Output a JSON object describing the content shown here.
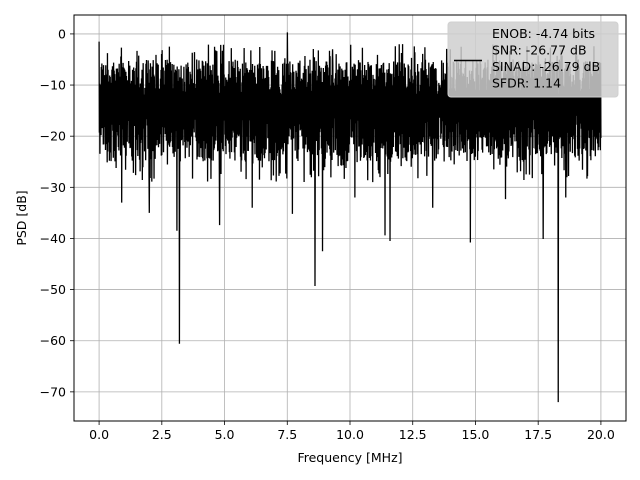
{
  "chart_data": {
    "type": "line",
    "title": "",
    "xlabel": "Frequency [MHz]",
    "ylabel": "PSD [dB]",
    "xlim": [
      -1.0,
      21.0
    ],
    "ylim": [
      -75.7,
      3.7
    ],
    "grid": true,
    "x_ticks": [
      0.0,
      2.5,
      5.0,
      7.5,
      10.0,
      12.5,
      15.0,
      17.5,
      20.0
    ],
    "x_tick_labels": [
      "0.0",
      "2.5",
      "5.0",
      "7.5",
      "10.0",
      "12.5",
      "15.0",
      "17.5",
      "20.0"
    ],
    "y_ticks": [
      0,
      -10,
      -20,
      -30,
      -40,
      -50,
      -60,
      -70
    ],
    "y_tick_labels": [
      "0",
      "−10",
      "−20",
      "−30",
      "−40",
      "−50",
      "−60",
      "−70"
    ],
    "legend_position": "top-right",
    "legend_lines": [
      "ENOB: -4.74 bits",
      "SNR: -26.77 dB",
      "SINAD: -26.79 dB",
      "SFDR: 1.14"
    ],
    "series": [
      {
        "color": "#000000",
        "x_range": [
          0.0,
          20.0
        ],
        "band_top": -5,
        "band_bottom": -25,
        "peaks": [
          [
            0.0,
            -1.5
          ],
          [
            2.0,
            -4
          ],
          [
            4.6,
            -2.5
          ],
          [
            7.5,
            0.3
          ],
          [
            9.3,
            -3
          ],
          [
            12.1,
            -2
          ],
          [
            14.0,
            -3
          ],
          [
            16.5,
            -5
          ],
          [
            19.0,
            -3
          ],
          [
            19.5,
            -6
          ]
        ],
        "dips": [
          [
            3.2,
            -60.6
          ],
          [
            18.3,
            -72.0
          ],
          [
            8.6,
            -49.3
          ],
          [
            8.9,
            -42.5
          ],
          [
            11.6,
            -40.5
          ],
          [
            14.8,
            -40.8
          ],
          [
            11.4,
            -39.4
          ],
          [
            17.7,
            -40.1
          ],
          [
            3.1,
            -38.5
          ],
          [
            4.8,
            -37.4
          ],
          [
            2.0,
            -35.0
          ],
          [
            6.1,
            -34.0
          ],
          [
            13.3,
            -34.0
          ],
          [
            16.2,
            -32.3
          ],
          [
            0.9,
            -33.0
          ],
          [
            7.7,
            -35.2
          ],
          [
            10.2,
            -32.0
          ],
          [
            18.6,
            -32.0
          ]
        ]
      }
    ]
  }
}
